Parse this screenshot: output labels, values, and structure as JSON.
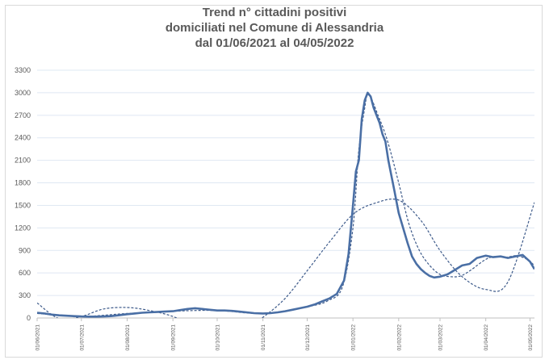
{
  "chart_data": {
    "type": "line",
    "title_lines": [
      "Trend n° cittadini positivi",
      "domiciliati nel Comune di Alessandria",
      "dal 01/06/2021 al 04/05/2022"
    ],
    "xlabel": "",
    "ylabel": "",
    "ylim": [
      0,
      3300
    ],
    "yticks": [
      "0",
      "300",
      "600",
      "900",
      "1200",
      "1500",
      "1800",
      "2100",
      "2400",
      "2700",
      "3000",
      "3300"
    ],
    "xticks": [
      "01/06/2021",
      "01/07/2021",
      "01/08/2021",
      "01/09/2021",
      "01/10/2021",
      "01/11/2021",
      "01/12/2021",
      "01/01/2022",
      "01/02/2022",
      "01/03/2022",
      "01/04/2022",
      "01/05/2022"
    ],
    "xlim": [
      "01/06/2021",
      "04/05/2022"
    ],
    "grid": true,
    "legend": "none",
    "colors": {
      "series": "#4a6fa5",
      "trend": "#3d5a8a",
      "grid": "#dfe8f3",
      "axis": "#bfbfbf"
    },
    "series": [
      {
        "values_note": "observed daily positives",
        "x": [
          "01/06/2021",
          "06/06/2021",
          "11/06/2021",
          "16/06/2021",
          "21/06/2021",
          "26/06/2021",
          "01/07/2021",
          "06/07/2021",
          "11/07/2021",
          "16/07/2021",
          "21/07/2021",
          "26/07/2021",
          "01/08/2021",
          "06/08/2021",
          "11/08/2021",
          "16/08/2021",
          "21/08/2021",
          "26/08/2021",
          "01/09/2021",
          "06/09/2021",
          "11/09/2021",
          "16/09/2021",
          "21/09/2021",
          "26/09/2021",
          "01/10/2021",
          "06/10/2021",
          "11/10/2021",
          "16/10/2021",
          "21/10/2021",
          "26/10/2021",
          "01/11/2021",
          "06/11/2021",
          "11/11/2021",
          "16/11/2021",
          "21/11/2021",
          "26/11/2021",
          "01/12/2021",
          "06/12/2021",
          "11/12/2021",
          "16/12/2021",
          "21/12/2021",
          "26/12/2021",
          "29/12/2021",
          "01/01/2022",
          "03/01/2022",
          "05/01/2022",
          "07/01/2022",
          "09/01/2022",
          "11/01/2022",
          "13/01/2022",
          "15/01/2022",
          "17/01/2022",
          "19/01/2022",
          "21/01/2022",
          "23/01/2022",
          "25/01/2022",
          "27/01/2022",
          "29/01/2022",
          "01/02/2022",
          "04/02/2022",
          "07/02/2022",
          "10/02/2022",
          "13/02/2022",
          "16/02/2022",
          "19/02/2022",
          "22/02/2022",
          "25/02/2022",
          "01/03/2022",
          "06/03/2022",
          "11/03/2022",
          "16/03/2022",
          "21/03/2022",
          "26/03/2022",
          "01/04/2022",
          "06/04/2022",
          "11/04/2022",
          "16/04/2022",
          "21/04/2022",
          "26/04/2022",
          "01/05/2022",
          "04/05/2022"
        ],
        "y": [
          70,
          60,
          45,
          35,
          30,
          25,
          20,
          18,
          18,
          20,
          25,
          35,
          50,
          60,
          70,
          75,
          80,
          85,
          90,
          105,
          120,
          130,
          120,
          110,
          100,
          100,
          95,
          85,
          75,
          65,
          60,
          65,
          75,
          90,
          110,
          130,
          150,
          180,
          220,
          260,
          320,
          500,
          850,
          1500,
          1950,
          2100,
          2650,
          2900,
          3000,
          2950,
          2800,
          2700,
          2600,
          2450,
          2350,
          2100,
          1900,
          1700,
          1400,
          1200,
          1000,
          820,
          720,
          650,
          600,
          560,
          540,
          550,
          580,
          640,
          700,
          720,
          800,
          830,
          810,
          820,
          800,
          820,
          840,
          750,
          650
        ]
      },
      {
        "values_note": "dashed moving-average trend",
        "x": [
          "01/06/2021",
          "01/07/2021",
          "01/08/2021",
          "01/09/2021",
          "01/10/2021",
          "01/11/2021",
          "01/12/2021",
          "15/12/2021",
          "25/12/2021",
          "01/01/2022",
          "05/01/2022",
          "09/01/2022",
          "11/01/2022",
          "14/01/2022",
          "18/01/2022",
          "22/01/2022",
          "26/01/2022",
          "01/02/2022",
          "08/02/2022",
          "15/02/2022",
          "22/02/2022",
          "01/03/2022",
          "08/03/2022",
          "15/03/2022",
          "22/03/2022",
          "01/04/2022",
          "08/04/2022",
          "15/04/2022",
          "22/04/2022",
          "29/04/2022",
          "04/05/2022"
        ],
        "y": [
          60,
          22,
          60,
          90,
          100,
          60,
          150,
          230,
          420,
          1200,
          2250,
          2800,
          2990,
          2900,
          2700,
          2500,
          2250,
          1800,
          1250,
          900,
          700,
          580,
          550,
          560,
          640,
          780,
          820,
          810,
          830,
          780,
          700
        ]
      },
      {
        "values_note": "dashed polynomial trend line",
        "x": [
          "01/06/2021",
          "16/06/2021",
          "01/07/2021",
          "16/07/2021",
          "01/08/2021",
          "16/08/2021",
          "01/09/2021",
          "16/09/2021",
          "01/10/2021",
          "16/10/2021",
          "01/11/2021",
          "16/11/2021",
          "01/12/2021",
          "16/12/2021",
          "01/01/2022",
          "16/01/2022",
          "01/02/2022",
          "16/02/2022",
          "01/03/2022",
          "16/03/2022",
          "01/04/2022",
          "16/04/2022",
          "04/05/2022"
        ],
        "y": [
          200,
          -10,
          20,
          120,
          140,
          100,
          20,
          -120,
          -250,
          -180,
          10,
          260,
          630,
          1010,
          1380,
          1530,
          1570,
          1300,
          900,
          550,
          380,
          480,
          1540
        ]
      }
    ]
  }
}
